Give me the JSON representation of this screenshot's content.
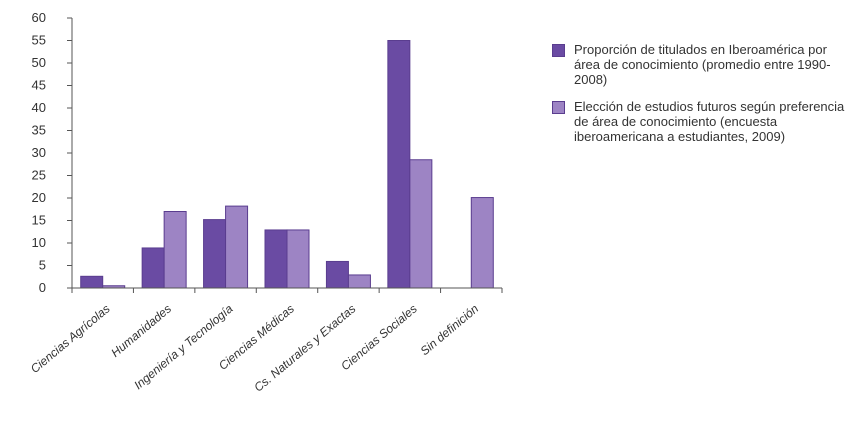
{
  "chart_data": {
    "type": "bar",
    "categories": [
      "Ciencias Agrícolas",
      "Humanidades",
      "Ingeniería y Tecnología",
      "Ciencias Médicas",
      "Cs. Naturales y Exactas",
      "Ciencias Sociales",
      "Sin definición"
    ],
    "series": [
      {
        "name": "Proporción de titulados en Iberoamérica por área de conocimiento (promedio entre 1990-2008)",
        "color": "#6a4ba3",
        "values": [
          2.6,
          8.9,
          15.2,
          12.9,
          5.9,
          55.0,
          0
        ]
      },
      {
        "name": "Elección de estudios futuros según preferencia de área de conocimiento (encuesta iberoamericana a estudiantes, 2009)",
        "color": "#9d84c4",
        "values": [
          0.5,
          17.0,
          18.2,
          12.9,
          2.9,
          28.5,
          20.1
        ]
      }
    ],
    "y_ticks": [
      "0",
      "5",
      "10",
      "15",
      "20",
      "25",
      "30",
      "35",
      "40",
      "45",
      "50",
      "55",
      "60"
    ],
    "ylim": [
      0,
      60
    ],
    "grid": false,
    "legend_position": "right"
  }
}
